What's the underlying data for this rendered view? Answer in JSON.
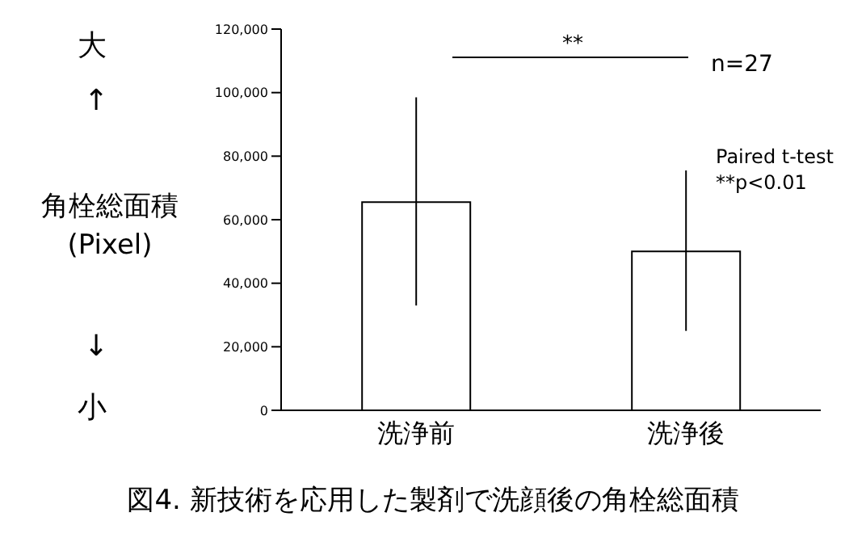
{
  "chart_data": {
    "type": "bar",
    "title": "図4. 新技術を応用した製剤で洗顔後の角栓総面積",
    "ylabel": "角栓総面積\n(Pixel)",
    "categories": [
      "洗浄前",
      "洗浄後"
    ],
    "values": [
      65500,
      50000
    ],
    "errors": [
      [
        33000,
        98500
      ],
      [
        25000,
        75500
      ]
    ],
    "color": "#ffffff",
    "ylim": [
      0,
      120000
    ],
    "yticks": [
      0,
      {
        "value": 20000,
        "label": "20,000"
      },
      {
        "value": 40000,
        "label": "40,000"
      },
      {
        "value": 60000,
        "label": "60,000"
      },
      {
        "value": 80000,
        "label": "80,000"
      },
      {
        "value": 100000,
        "label": "100,000"
      },
      {
        "value": 120000,
        "label": "120,000"
      }
    ],
    "annotations": [
      "大",
      "↑",
      "↓",
      "小",
      "**",
      "n=27",
      "Paired t-test",
      "**p<0.01"
    ]
  }
}
